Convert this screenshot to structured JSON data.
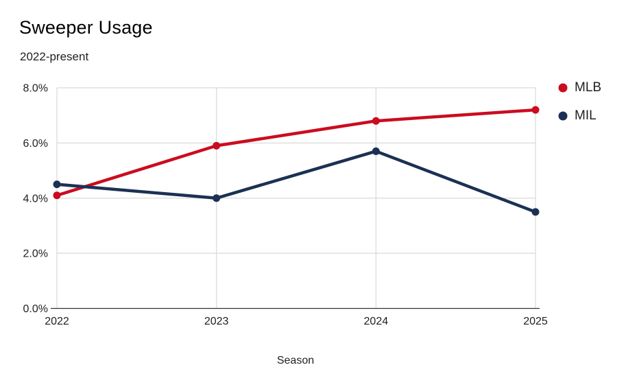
{
  "header": {
    "title": "Sweeper Usage",
    "subtitle": "2022-present"
  },
  "legend": {
    "items": [
      {
        "label": "MLB",
        "color": "#CB0C1F"
      },
      {
        "label": "MIL",
        "color": "#1B3153"
      }
    ]
  },
  "colors": {
    "background": "#FFFFFF",
    "grid": "#D9D9D9",
    "axis": "#333333",
    "text": "#1F1F1F",
    "mlb_red": "#CB0C1F",
    "mil_navy": "#1B3153"
  },
  "chart_data": {
    "type": "line",
    "title": "Sweeper Usage",
    "subtitle": "2022-present",
    "xlabel": "Season",
    "ylabel": "",
    "categories": [
      "2022",
      "2023",
      "2024",
      "2025"
    ],
    "series": [
      {
        "name": "MLB",
        "color": "#CB0C1F",
        "values": [
          4.1,
          5.9,
          6.8,
          7.2
        ]
      },
      {
        "name": "MIL",
        "color": "#1B3153",
        "values": [
          4.5,
          4.0,
          5.7,
          3.5
        ]
      }
    ],
    "ylim": [
      0,
      8
    ],
    "y_tick_values": [
      0,
      2,
      4,
      6,
      8
    ],
    "y_ticks": [
      "0.0%",
      "2.0%",
      "4.0%",
      "6.0%",
      "8.0%"
    ],
    "grid": "horizontal and vertical, light gray",
    "legend_position": "right"
  }
}
